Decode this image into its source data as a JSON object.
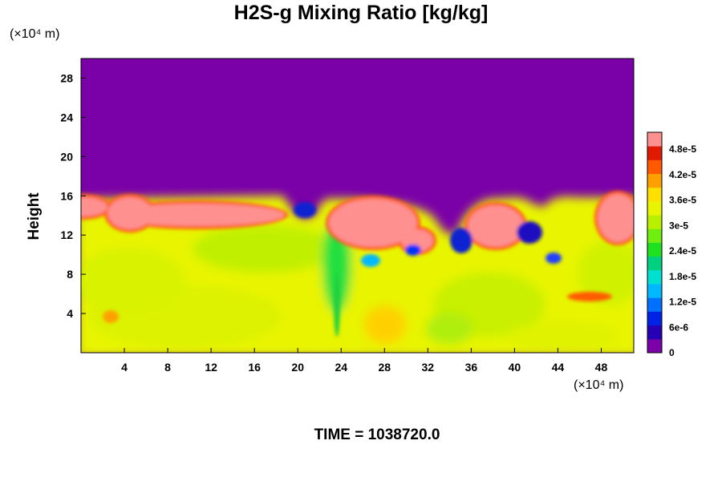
{
  "chart_data": {
    "type": "heatmap",
    "title": "H2S-g Mixing Ratio [kg/kg]",
    "ylabel": "Height",
    "xunit": "(×10⁴ m)",
    "yunit": "(×10⁴ m)",
    "xlim": [
      0,
      51
    ],
    "ylim": [
      0,
      30
    ],
    "x_ticks": [
      "4",
      "8",
      "12",
      "16",
      "20",
      "24",
      "28",
      "32",
      "36",
      "40",
      "44",
      "48"
    ],
    "x_tick_values": [
      4,
      8,
      12,
      16,
      20,
      24,
      28,
      32,
      36,
      40,
      44,
      48
    ],
    "y_ticks": [
      "4",
      "8",
      "12",
      "16",
      "20",
      "24",
      "28"
    ],
    "y_tick_values": [
      4,
      8,
      12,
      16,
      20,
      24,
      28
    ],
    "colorbar": {
      "range": [
        0,
        5.2e-05
      ],
      "tick_labels": [
        "0",
        "6e-6",
        "1.2e-5",
        "1.8e-5",
        "2.4e-5",
        "3e-5",
        "3.6e-5",
        "4.2e-5",
        "4.8e-5"
      ],
      "tick_values": [
        0,
        6e-06,
        1.2e-05,
        1.8e-05,
        2.4e-05,
        3e-05,
        3.6e-05,
        4.2e-05,
        4.8e-05
      ],
      "colors": [
        "#7a00a8",
        "#2600b4",
        "#0022e6",
        "#0070ff",
        "#00b8ff",
        "#00e0d0",
        "#00d080",
        "#20e020",
        "#70ee10",
        "#b8f000",
        "#e8f400",
        "#ffe000",
        "#ffa000",
        "#ff5a00",
        "#e01a00",
        "#ff9090"
      ]
    },
    "field_summary": {
      "background_above_15km": 0,
      "lower_layer_typical": 3.3e-05,
      "top_layer_peak": 5.2e-05
    }
  },
  "time_label": "TIME = 1038720.0"
}
